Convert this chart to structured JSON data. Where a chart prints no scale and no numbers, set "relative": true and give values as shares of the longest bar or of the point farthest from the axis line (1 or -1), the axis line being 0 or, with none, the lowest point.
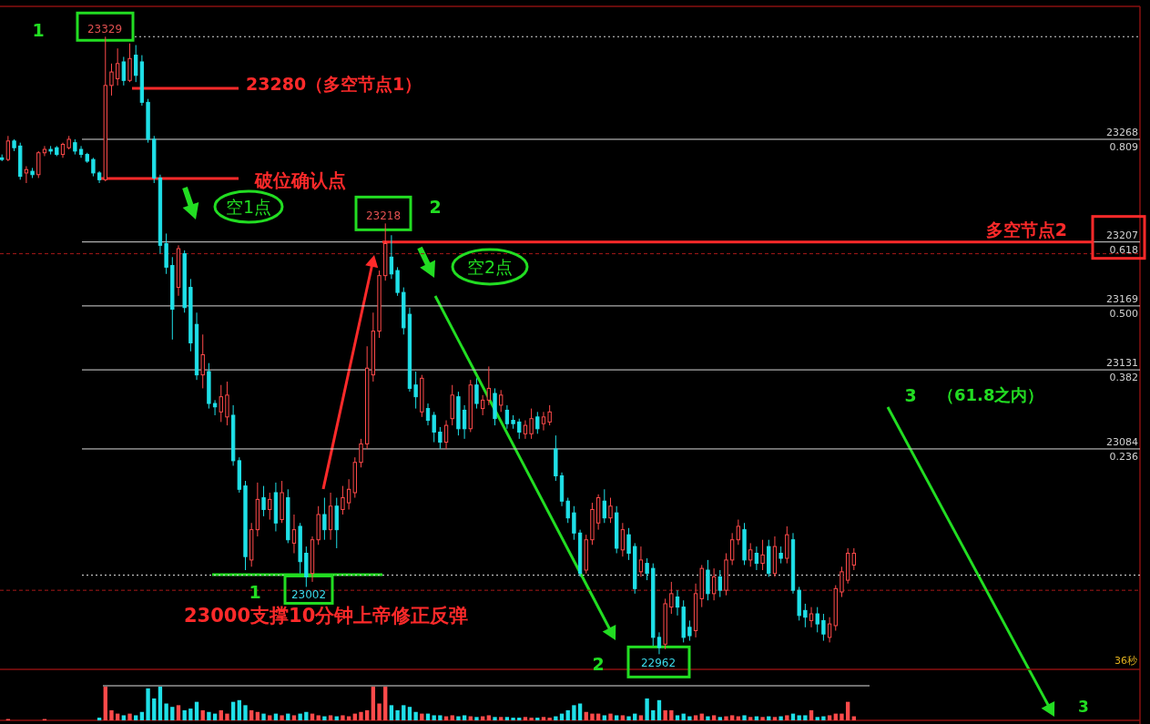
{
  "chart_data": [
    {
      "type": "candlestick",
      "categories": [
        null,
        null,
        null,
        null,
        null,
        null,
        null,
        null,
        null,
        null,
        null,
        null,
        null,
        null,
        null,
        null,
        null,
        null,
        null,
        null,
        null,
        null,
        null,
        null,
        null,
        null,
        null,
        null,
        null,
        null,
        null,
        null,
        null,
        null,
        null,
        null,
        null,
        null,
        null,
        null,
        null,
        null,
        null,
        null,
        null,
        null,
        null,
        null,
        null,
        null,
        null,
        null,
        null,
        null,
        null,
        null,
        null,
        null,
        null,
        null,
        null,
        null,
        null,
        null,
        null,
        null,
        null,
        null,
        null,
        null,
        null,
        null,
        null,
        null,
        null,
        null,
        null,
        null,
        null,
        null,
        null,
        null,
        null,
        null,
        null,
        null,
        null,
        null,
        null,
        null,
        null,
        null,
        null,
        null,
        null,
        null,
        null,
        null,
        null,
        null,
        null,
        null,
        null,
        null,
        null,
        null,
        null,
        null,
        null,
        null,
        null,
        null,
        null,
        null,
        null,
        null,
        null,
        null,
        null,
        null,
        null,
        null,
        null,
        null,
        null,
        null,
        null,
        null,
        null,
        null,
        null,
        null,
        null,
        null,
        null,
        null,
        null,
        null,
        null,
        null,
        null
      ],
      "ohlc": [
        [
          23257,
          23259,
          23255,
          23256
        ],
        [
          23256,
          23270,
          23255,
          23267
        ],
        [
          23267,
          23268,
          23261,
          23263
        ],
        [
          23264,
          23266,
          23244,
          23246
        ],
        [
          23248,
          23252,
          23242,
          23250
        ],
        [
          23249,
          23251,
          23245,
          23247
        ],
        [
          23247,
          23261,
          23245,
          23260
        ],
        [
          23260,
          23264,
          23258,
          23262
        ],
        [
          23262,
          23264,
          23259,
          23261
        ],
        [
          23263,
          23264,
          23258,
          23259
        ],
        [
          23259,
          23266,
          23257,
          23265
        ],
        [
          23263,
          23270,
          23262,
          23268
        ],
        [
          23266,
          23268,
          23259,
          23261
        ],
        [
          23262,
          23264,
          23257,
          23259
        ],
        [
          23259,
          23260,
          23254,
          23255
        ],
        [
          23256,
          23257,
          23246,
          23248
        ],
        [
          23248,
          23249,
          23242,
          23244
        ],
        [
          23244,
          23329,
          23243,
          23300
        ],
        [
          23300,
          23313,
          23294,
          23308
        ],
        [
          23304,
          23322,
          23300,
          23313
        ],
        [
          23314,
          23317,
          23300,
          23303
        ],
        [
          23303,
          23325,
          23302,
          23316
        ],
        [
          23318,
          23324,
          23302,
          23306
        ],
        [
          23314,
          23318,
          23288,
          23290
        ],
        [
          23290,
          23292,
          23266,
          23268
        ],
        [
          23268,
          23270,
          23242,
          23245
        ],
        [
          23245,
          23247,
          23200,
          23205
        ],
        [
          23206,
          23212,
          23188,
          23192
        ],
        [
          23193,
          23198,
          23149,
          23167
        ],
        [
          23180,
          23205,
          23175,
          23203
        ],
        [
          23200,
          23202,
          23165,
          23168
        ],
        [
          23180,
          23185,
          23142,
          23147
        ],
        [
          23158,
          23165,
          23125,
          23128
        ],
        [
          23128,
          23152,
          23120,
          23140
        ],
        [
          23130,
          23135,
          23108,
          23111
        ],
        [
          23111,
          23113,
          23104,
          23109
        ],
        [
          23106,
          23122,
          23100,
          23115
        ],
        [
          23103,
          23124,
          23098,
          23116
        ],
        [
          23104,
          23110,
          23074,
          23077
        ],
        [
          23077,
          23079,
          23058,
          23060
        ],
        [
          23062,
          23065,
          23012,
          23020
        ],
        [
          23018,
          23040,
          23014,
          23036
        ],
        [
          23036,
          23064,
          23032,
          23054
        ],
        [
          23055,
          23062,
          23044,
          23048
        ],
        [
          23048,
          23058,
          23042,
          23054
        ],
        [
          23058,
          23064,
          23035,
          23040
        ],
        [
          23042,
          23065,
          23040,
          23058
        ],
        [
          23055,
          23060,
          23028,
          23030
        ],
        [
          23028,
          23045,
          23022,
          23036
        ],
        [
          23038,
          23040,
          23010,
          23017
        ],
        [
          23022,
          23026,
          23002,
          23008
        ],
        [
          23010,
          23032,
          23005,
          23030
        ],
        [
          23030,
          23050,
          23027,
          23045
        ],
        [
          23045,
          23055,
          23030,
          23036
        ],
        [
          23036,
          23058,
          23030,
          23050
        ],
        [
          23050,
          23055,
          23025,
          23036
        ],
        [
          23048,
          23062,
          23045,
          23055
        ],
        [
          23052,
          23066,
          23048,
          23060
        ],
        [
          23058,
          23079,
          23055,
          23076
        ],
        [
          23076,
          23090,
          23073,
          23087
        ],
        [
          23087,
          23145,
          23084,
          23132
        ],
        [
          23128,
          23165,
          23124,
          23154
        ],
        [
          23154,
          23190,
          23150,
          23187
        ],
        [
          23187,
          23218,
          23184,
          23206
        ],
        [
          23198,
          23211,
          23185,
          23188
        ],
        [
          23190,
          23192,
          23175,
          23177
        ],
        [
          23177,
          23180,
          23152,
          23156
        ],
        [
          23164,
          23168,
          23118,
          23120
        ],
        [
          23122,
          23130,
          23108,
          23115
        ],
        [
          23106,
          23128,
          23103,
          23126
        ],
        [
          23108,
          23111,
          23098,
          23101
        ],
        [
          23104,
          23106,
          23088,
          23094
        ],
        [
          23094,
          23097,
          23084,
          23088
        ],
        [
          23088,
          23101,
          23084,
          23098
        ],
        [
          23102,
          23122,
          23098,
          23116
        ],
        [
          23115,
          23118,
          23092,
          23096
        ],
        [
          23107,
          23110,
          23090,
          23096
        ],
        [
          23096,
          23125,
          23094,
          23122
        ],
        [
          23122,
          23126,
          23108,
          23111
        ],
        [
          23108,
          23116,
          23104,
          23113
        ],
        [
          23113,
          23133,
          23110,
          23120
        ],
        [
          23117,
          23120,
          23098,
          23102
        ],
        [
          23110,
          23119,
          23106,
          23116
        ],
        [
          23107,
          23110,
          23096,
          23099
        ],
        [
          23101,
          23104,
          23096,
          23099
        ],
        [
          23100,
          23102,
          23090,
          23094
        ],
        [
          23093,
          23101,
          23090,
          23098
        ],
        [
          23093,
          23108,
          23090,
          23102
        ],
        [
          23103,
          23106,
          23093,
          23096
        ],
        [
          23099,
          23106,
          23095,
          23103
        ],
        [
          23100,
          23110,
          23098,
          23106
        ],
        [
          23084,
          23092,
          23065,
          23068
        ],
        [
          23068,
          23070,
          23050,
          23053
        ],
        [
          23053,
          23055,
          23040,
          23043
        ],
        [
          23046,
          23050,
          23030,
          23034
        ],
        [
          23034,
          23036,
          23008,
          23010
        ],
        [
          23012,
          23033,
          23010,
          23030
        ],
        [
          23030,
          23052,
          23027,
          23048
        ],
        [
          23040,
          23057,
          23036,
          23055
        ],
        [
          23053,
          23060,
          23040,
          23043
        ],
        [
          23043,
          23055,
          23040,
          23050
        ],
        [
          23046,
          23050,
          23022,
          23025
        ],
        [
          23024,
          23040,
          23020,
          23036
        ],
        [
          23033,
          23037,
          23018,
          23022
        ],
        [
          23026,
          23028,
          22998,
          23001
        ],
        [
          23011,
          23026,
          23008,
          23018
        ],
        [
          23016,
          23019,
          23006,
          23010
        ],
        [
          23013,
          23016,
          22967,
          22972
        ],
        [
          22972,
          22975,
          22962,
          22966
        ],
        [
          22968,
          22995,
          22965,
          22992
        ],
        [
          22990,
          23005,
          22986,
          22998
        ],
        [
          22996,
          23000,
          22985,
          22990
        ],
        [
          22990,
          22994,
          22969,
          22972
        ],
        [
          22978,
          22982,
          22970,
          22973
        ],
        [
          22976,
          23004,
          22972,
          22998
        ],
        [
          22995,
          23015,
          22990,
          23013
        ],
        [
          23012,
          23018,
          22994,
          22998
        ],
        [
          22998,
          23013,
          22994,
          23008
        ],
        [
          23008,
          23012,
          22996,
          23000
        ],
        [
          23000,
          23022,
          22997,
          23018
        ],
        [
          23018,
          23034,
          23015,
          23030
        ],
        [
          23030,
          23042,
          23027,
          23038
        ],
        [
          23036,
          23040,
          23015,
          23018
        ],
        [
          23018,
          23028,
          23014,
          23024
        ],
        [
          23022,
          23026,
          23012,
          23016
        ],
        [
          23016,
          23030,
          23012,
          23021
        ],
        [
          23026,
          23030,
          23008,
          23010
        ],
        [
          23010,
          23032,
          23008,
          23026
        ],
        [
          23022,
          23026,
          23016,
          23019
        ],
        [
          23019,
          23038,
          23016,
          23033
        ],
        [
          23030,
          23034,
          22998,
          23000
        ],
        [
          23000,
          23002,
          22982,
          22985
        ],
        [
          22988,
          22992,
          22978,
          22984
        ],
        [
          22982,
          22990,
          22978,
          22986
        ],
        [
          22986,
          22990,
          22975,
          22980
        ],
        [
          22982,
          22986,
          22970,
          22974
        ],
        [
          22972,
          22984,
          22969,
          22980
        ],
        [
          22979,
          23003,
          22976,
          23001
        ],
        [
          22999,
          23014,
          22996,
          23011
        ],
        [
          23006,
          23025,
          23004,
          23022
        ],
        [
          23015,
          23025,
          23012,
          23022
        ]
      ],
      "colors": [
        "#1fe0e8",
        "#ff4a4a",
        "#1fe0e8",
        "#1fe0e8",
        "#ff4a4a",
        "#1fe0e8",
        "#ff4a4a",
        "#ff4a4a",
        "#1fe0e8",
        "#1fe0e8",
        "#ff4a4a",
        "#ff4a4a",
        "#1fe0e8",
        "#1fe0e8",
        "#1fe0e8",
        "#1fe0e8",
        "#1fe0e8",
        "#ff4a4a",
        "#ff4a4a",
        "#ff4a4a",
        "#1fe0e8",
        "#ff4a4a",
        "#1fe0e8",
        "#1fe0e8",
        "#1fe0e8",
        "#1fe0e8",
        "#1fe0e8",
        "#1fe0e8",
        "#1fe0e8",
        "#ff4a4a",
        "#1fe0e8",
        "#1fe0e8",
        "#1fe0e8",
        "#ff4a4a",
        "#1fe0e8",
        "#1fe0e8",
        "#ff4a4a",
        "#ff4a4a",
        "#1fe0e8",
        "#1fe0e8",
        "#1fe0e8",
        "#ff4a4a",
        "#ff4a4a",
        "#1fe0e8",
        "#ff4a4a",
        "#1fe0e8",
        "#ff4a4a",
        "#1fe0e8",
        "#ff4a4a",
        "#1fe0e8",
        "#1fe0e8",
        "#ff4a4a",
        "#ff4a4a",
        "#1fe0e8",
        "#ff4a4a",
        "#1fe0e8",
        "#ff4a4a",
        "#ff4a4a",
        "#ff4a4a",
        "#ff4a4a",
        "#ff4a4a",
        "#ff4a4a",
        "#ff4a4a",
        "#ff4a4a",
        "#1fe0e8",
        "#1fe0e8",
        "#1fe0e8",
        "#1fe0e8",
        "#1fe0e8",
        "#ff4a4a",
        "#1fe0e8",
        "#1fe0e8",
        "#1fe0e8",
        "#ff4a4a",
        "#ff4a4a",
        "#1fe0e8",
        "#1fe0e8",
        "#ff4a4a",
        "#1fe0e8",
        "#ff4a4a",
        "#ff4a4a",
        "#1fe0e8",
        "#ff4a4a",
        "#1fe0e8",
        "#1fe0e8",
        "#1fe0e8",
        "#ff4a4a",
        "#ff4a4a",
        "#1fe0e8",
        "#ff4a4a",
        "#ff4a4a",
        "#1fe0e8",
        "#1fe0e8",
        "#1fe0e8",
        "#1fe0e8",
        "#1fe0e8",
        "#ff4a4a",
        "#ff4a4a",
        "#ff4a4a",
        "#1fe0e8",
        "#ff4a4a",
        "#1fe0e8",
        "#ff4a4a",
        "#1fe0e8",
        "#1fe0e8",
        "#ff4a4a",
        "#1fe0e8",
        "#1fe0e8",
        "#1fe0e8",
        "#ff4a4a",
        "#ff4a4a",
        "#1fe0e8",
        "#1fe0e8",
        "#1fe0e8",
        "#ff4a4a",
        "#ff4a4a",
        "#1fe0e8",
        "#ff4a4a",
        "#1fe0e8",
        "#ff4a4a",
        "#ff4a4a",
        "#ff4a4a",
        "#1fe0e8",
        "#ff4a4a",
        "#1fe0e8",
        "#ff4a4a",
        "#1fe0e8",
        "#ff4a4a",
        "#1fe0e8",
        "#ff4a4a",
        "#1fe0e8",
        "#1fe0e8",
        "#1fe0e8",
        "#ff4a4a",
        "#1fe0e8",
        "#1fe0e8",
        "#ff4a4a",
        "#ff4a4a",
        "#ff4a4a",
        "#ff4a4a",
        "#ff4a4a"
      ],
      "ylim": [
        22953,
        23347
      ],
      "ref_lines": [
        {
          "axis": "y",
          "value": 23329,
          "color": "#d8d8d8",
          "line_style": "dotted"
        },
        {
          "axis": "y",
          "value": 23268,
          "label": "23268\n0.809",
          "color": "#d8d8d8"
        },
        {
          "axis": "y",
          "value": 23207,
          "label": "23207\n0.618",
          "color": "#d8d8d8"
        },
        {
          "axis": "y",
          "value": 23169,
          "label": "23169\n0.500",
          "color": "#d8d8d8"
        },
        {
          "axis": "y",
          "value": 23131,
          "label": "23131\n0.382",
          "color": "#d8d8d8"
        },
        {
          "axis": "y",
          "value": 23084,
          "label": "23084\n0.236",
          "color": "#d8d8d8"
        },
        {
          "axis": "y",
          "value": 23009,
          "color": "#d8d8d8",
          "line_style": "dotted"
        },
        {
          "axis": "y",
          "value": 23200,
          "color": "#a81818",
          "line_style": "dashed"
        },
        {
          "axis": "y",
          "value": 23000,
          "color": "#a81818",
          "line_style": "dashed"
        },
        {
          "axis": "y",
          "value": 23207,
          "label": "多空节点2",
          "color": "#ff2a2a"
        }
      ],
      "annotations": [
        "1",
        {
          "text": "23329",
          "y": 23329
        },
        "23280（多空节点1）",
        "破位确认点",
        "空1点",
        {
          "text": "23218",
          "y": 23218
        },
        "2",
        "空2点",
        "3",
        "（61.8之内）",
        "1",
        {
          "text": "23002",
          "y": 23002
        },
        "23000支撑10分钟上帝修正反弹",
        "2",
        {
          "text": "22962",
          "y": 22962
        },
        "36秒",
        "3"
      ]
    },
    {
      "type": "bar",
      "relative": true,
      "categories": [
        null,
        null,
        null,
        null,
        null,
        null,
        null,
        null,
        null,
        null,
        null,
        null,
        null,
        null,
        null,
        null,
        null,
        null,
        null,
        null,
        null,
        null,
        null,
        null,
        null,
        null,
        null,
        null,
        null,
        null,
        null,
        null,
        null,
        null,
        null,
        null,
        null,
        null,
        null,
        null,
        null,
        null,
        null,
        null,
        null,
        null,
        null,
        null,
        null,
        null,
        null,
        null,
        null,
        null,
        null,
        null,
        null,
        null,
        null,
        null,
        null,
        null,
        null,
        null,
        null,
        null,
        null,
        null,
        null,
        null,
        null,
        null,
        null,
        null,
        null,
        null,
        null,
        null,
        null,
        null,
        null,
        null,
        null,
        null,
        null,
        null,
        null,
        null,
        null,
        null,
        null,
        null,
        null,
        null,
        null,
        null,
        null,
        null,
        null,
        null,
        null,
        null,
        null,
        null,
        null,
        null,
        null,
        null,
        null,
        null,
        null,
        null,
        null,
        null,
        null,
        null,
        null,
        null,
        null,
        null,
        null,
        null,
        null,
        null,
        null,
        null,
        null,
        null,
        null,
        null,
        null,
        null,
        null,
        null,
        null,
        null,
        null,
        null,
        null,
        null,
        null
      ],
      "values": [
        null,
        0.04,
        null,
        null,
        null,
        null,
        null,
        0.04,
        null,
        null,
        null,
        null,
        null,
        null,
        null,
        null,
        0.08,
        1,
        0.3,
        0.2,
        0.15,
        0.2,
        0.15,
        0.25,
        0.95,
        0.65,
        1,
        0.5,
        0.4,
        0.45,
        0.3,
        0.35,
        0.55,
        0.3,
        0.25,
        0.2,
        0.3,
        0.2,
        0.55,
        0.6,
        0.45,
        0.3,
        0.25,
        0.2,
        0.15,
        0.2,
        0.15,
        0.2,
        0.15,
        0.2,
        0.25,
        0.2,
        0.15,
        0.12,
        0.15,
        0.12,
        0.15,
        0.12,
        0.2,
        0.25,
        0.3,
        1,
        0.5,
        1,
        0.45,
        0.3,
        0.45,
        0.4,
        0.25,
        0.2,
        0.2,
        0.15,
        0.15,
        0.12,
        0.15,
        0.12,
        0.15,
        0.12,
        0.1,
        0.12,
        0.15,
        0.1,
        0.1,
        0.1,
        0.08,
        0.08,
        0.1,
        0.08,
        0.08,
        0.1,
        0.08,
        0.12,
        0.2,
        0.3,
        0.45,
        0.5,
        0.25,
        0.2,
        0.2,
        0.15,
        0.2,
        0.15,
        0.15,
        0.12,
        0.2,
        0.15,
        0.65,
        0.3,
        0.6,
        0.3,
        0.3,
        0.15,
        0.2,
        0.12,
        0.15,
        0.2,
        0.12,
        0.15,
        0.1,
        0.12,
        0.15,
        0.12,
        0.15,
        0.1,
        0.12,
        0.1,
        0.12,
        0.1,
        0.12,
        0.15,
        0.2,
        0.15,
        0.15,
        0.3,
        0.1,
        0.12,
        0.15,
        0.2,
        0.2,
        0.55,
        0.12
      ],
      "colors": [
        null,
        "#ff4a4a",
        null,
        null,
        null,
        null,
        null,
        "#ff4a4a",
        null,
        null,
        null,
        null,
        null,
        null,
        null,
        null,
        "#1fe0e8",
        "#ff4a4a",
        "#ff4a4a",
        "#ff4a4a",
        "#1fe0e8",
        "#ff4a4a",
        "#1fe0e8",
        "#1fe0e8",
        "#1fe0e8",
        "#1fe0e8",
        "#1fe0e8",
        "#1fe0e8",
        "#1fe0e8",
        "#ff4a4a",
        "#1fe0e8",
        "#1fe0e8",
        "#1fe0e8",
        "#ff4a4a",
        "#1fe0e8",
        "#1fe0e8",
        "#ff4a4a",
        "#ff4a4a",
        "#1fe0e8",
        "#1fe0e8",
        "#1fe0e8",
        "#ff4a4a",
        "#ff4a4a",
        "#1fe0e8",
        "#ff4a4a",
        "#1fe0e8",
        "#ff4a4a",
        "#1fe0e8",
        "#ff4a4a",
        "#1fe0e8",
        "#1fe0e8",
        "#ff4a4a",
        "#ff4a4a",
        "#1fe0e8",
        "#ff4a4a",
        "#1fe0e8",
        "#ff4a4a",
        "#ff4a4a",
        "#ff4a4a",
        "#ff4a4a",
        "#ff4a4a",
        "#ff4a4a",
        "#ff4a4a",
        "#ff4a4a",
        "#1fe0e8",
        "#1fe0e8",
        "#1fe0e8",
        "#1fe0e8",
        "#1fe0e8",
        "#ff4a4a",
        "#1fe0e8",
        "#1fe0e8",
        "#1fe0e8",
        "#ff4a4a",
        "#ff4a4a",
        "#1fe0e8",
        "#1fe0e8",
        "#ff4a4a",
        "#1fe0e8",
        "#ff4a4a",
        "#ff4a4a",
        "#1fe0e8",
        "#ff4a4a",
        "#1fe0e8",
        "#1fe0e8",
        "#1fe0e8",
        "#ff4a4a",
        "#ff4a4a",
        "#1fe0e8",
        "#ff4a4a",
        "#ff4a4a",
        "#1fe0e8",
        "#1fe0e8",
        "#1fe0e8",
        "#1fe0e8",
        "#1fe0e8",
        "#ff4a4a",
        "#ff4a4a",
        "#ff4a4a",
        "#1fe0e8",
        "#ff4a4a",
        "#1fe0e8",
        "#ff4a4a",
        "#1fe0e8",
        "#1fe0e8",
        "#ff4a4a",
        "#1fe0e8",
        "#1fe0e8",
        "#1fe0e8",
        "#ff4a4a",
        "#ff4a4a",
        "#1fe0e8",
        "#1fe0e8",
        "#1fe0e8",
        "#ff4a4a",
        "#ff4a4a",
        "#1fe0e8",
        "#ff4a4a",
        "#1fe0e8",
        "#ff4a4a",
        "#ff4a4a",
        "#ff4a4a",
        "#1fe0e8",
        "#ff4a4a",
        "#1fe0e8",
        "#ff4a4a",
        "#1fe0e8",
        "#ff4a4a",
        "#1fe0e8",
        "#ff4a4a",
        "#1fe0e8",
        "#1fe0e8",
        "#1fe0e8",
        "#ff4a4a",
        "#1fe0e8",
        "#1fe0e8",
        "#ff4a4a",
        "#ff4a4a",
        "#ff4a4a",
        "#ff4a4a",
        "#ff4a4a"
      ]
    }
  ]
}
